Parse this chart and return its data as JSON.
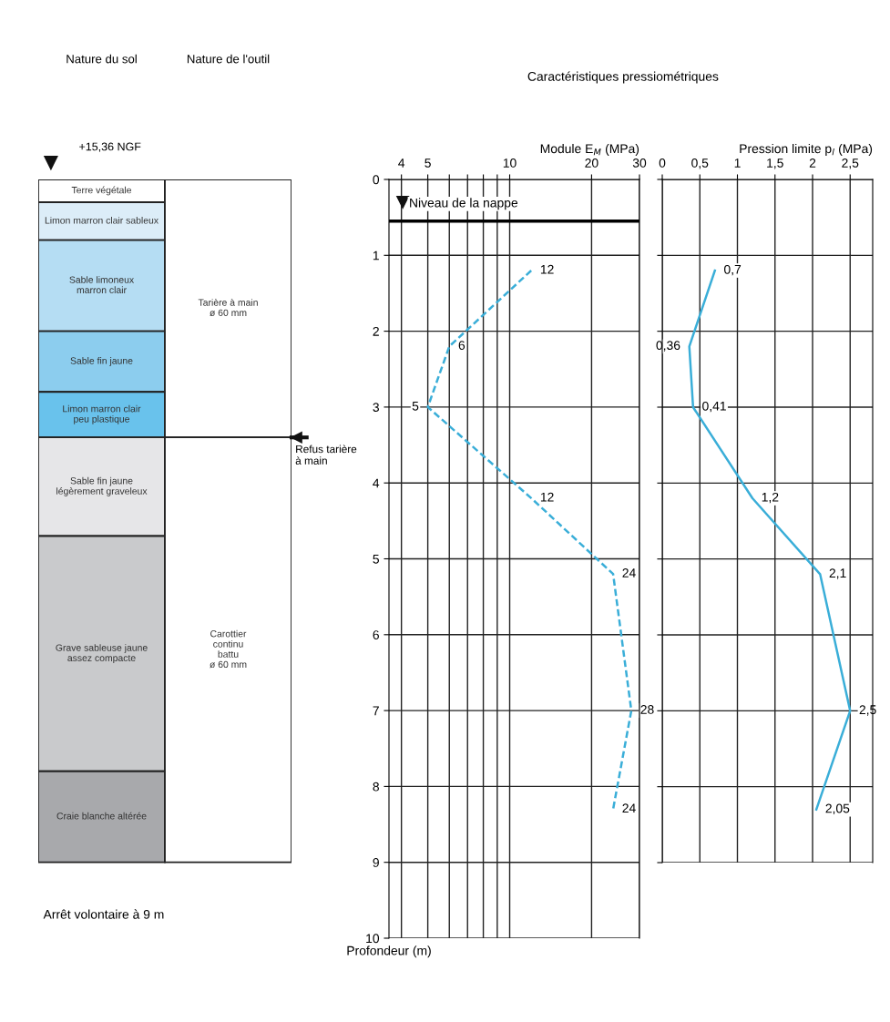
{
  "chart_data": [
    {
      "type": "bar",
      "stacked": true,
      "categories": [
        "Nature du sol",
        "Nature de l'outil"
      ],
      "ylim": [
        10,
        0
      ],
      "tick_labels": "x",
      "series": [
        {
          "name": "Terre végétale",
          "color": "#ffffff",
          "values": [
            0.3,
            null
          ]
        },
        {
          "name": "Limon marron clair sableux",
          "color": "#dcedf8",
          "values": [
            0.5,
            null
          ]
        },
        {
          "name": "Sable limoneux\nmarron clair",
          "color": "#b5ddf3",
          "values": [
            1.2,
            null
          ]
        },
        {
          "name": "Sable fin jaune",
          "color": "#8ccdee",
          "values": [
            0.8,
            null
          ]
        },
        {
          "name": "Limon marron clair\npeu plastique",
          "color": "#69c2ec",
          "values": [
            0.6,
            null
          ]
        },
        {
          "name": "Sable fin jaune\nlégèrement graveleux",
          "color": "#e6e6e8",
          "values": [
            1.3,
            null
          ]
        },
        {
          "name": "Grave sableuse jaune\nassez compacte",
          "color": "#c9cacc",
          "values": [
            3.1,
            null
          ]
        },
        {
          "name": "Craie blanche altérée",
          "color": "#a8a9ac",
          "values": [
            1.2,
            null
          ]
        },
        {
          "name": "Tarière à main\nø 60 mm",
          "color": "#ffffff",
          "values": [
            null,
            3.4
          ]
        },
        {
          "name": "Carottier\ncontinu\nbattu\nø 60 mm",
          "color": "#ffffff",
          "values": [
            null,
            5.6
          ]
        }
      ],
      "annotations": [
        "+15,36 NGF",
        "Arrêt volontaire à 9 m",
        "Refus tarière\nà main"
      ]
    },
    {
      "type": "line",
      "orientation": "horizontal",
      "title": "Caractéristiques pressiométriques",
      "xlabel": "Module E$_{M}$ (MPa)",
      "ylabel": "Profondeur (m)",
      "log": "x",
      "xlim": [
        3.6,
        30
      ],
      "xticks": [
        4,
        5,
        {
          "value": 6,
          "label": null
        },
        {
          "value": 7,
          "label": null
        },
        {
          "value": 8,
          "label": null
        },
        {
          "value": 9,
          "label": null
        },
        10,
        20,
        30
      ],
      "ylim": [
        10,
        0
      ],
      "yticks": [
        0,
        1,
        2,
        3,
        4,
        5,
        6,
        7,
        8,
        9,
        10
      ],
      "grid": true,
      "marker": "none",
      "line_style": "dashed",
      "color": "#3aaed8",
      "x": [
        1.2,
        2.2,
        3,
        4.2,
        5.2,
        7,
        8.3
      ],
      "values": [
        12,
        6,
        5,
        12,
        24,
        28,
        24
      ],
      "value_labels": [
        "12",
        "6",
        "5",
        "12",
        "24",
        "28",
        "24"
      ],
      "ref_lines": [
        {
          "axis": "y",
          "value": 0.55,
          "label": "Niveau de la nappe"
        }
      ]
    },
    {
      "type": "line",
      "orientation": "horizontal",
      "xlabel": "Pression limite p$_{l}$ (MPa)",
      "tick_labels": "x",
      "xlim": [
        0,
        2.8
      ],
      "xticks": [
        0,
        {
          "value": 0.5,
          "label": "0,5"
        },
        1,
        {
          "value": 1.5,
          "label": "1,5"
        },
        2,
        {
          "value": 2.5,
          "label": "2,5"
        }
      ],
      "ylim": [
        9,
        0
      ],
      "yticks": [
        0,
        1,
        2,
        3,
        4,
        5,
        6,
        7,
        8,
        9
      ],
      "grid": true,
      "marker": "none",
      "line_style": "solid",
      "color": "#3aaed8",
      "x": [
        1.2,
        2.2,
        3,
        4.2,
        5.2,
        7,
        8.3
      ],
      "values": [
        0.7,
        0.36,
        0.41,
        1.2,
        2.1,
        2.5,
        2.05
      ],
      "value_labels": [
        "0,7",
        "0,36",
        "0,41",
        "1,2",
        "2,1",
        "2,5",
        "2,05"
      ]
    }
  ]
}
